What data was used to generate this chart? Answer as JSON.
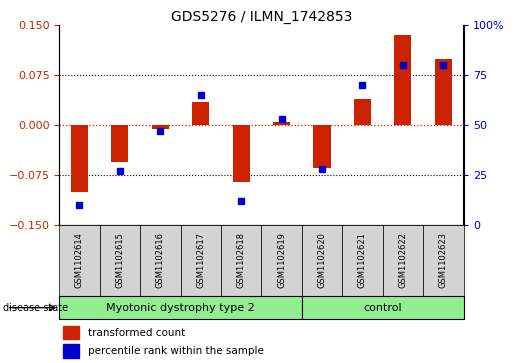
{
  "title": "GDS5276 / ILMN_1742853",
  "samples": [
    "GSM1102614",
    "GSM1102615",
    "GSM1102616",
    "GSM1102617",
    "GSM1102618",
    "GSM1102619",
    "GSM1102620",
    "GSM1102621",
    "GSM1102622",
    "GSM1102623"
  ],
  "red_values": [
    -0.1,
    -0.055,
    -0.005,
    0.035,
    -0.085,
    0.005,
    -0.065,
    0.04,
    0.135,
    0.1
  ],
  "blue_values": [
    10,
    27,
    47,
    65,
    12,
    53,
    28,
    70,
    80,
    80
  ],
  "groups": [
    {
      "label": "Myotonic dystrophy type 2",
      "start": 0,
      "end": 6
    },
    {
      "label": "control",
      "start": 6,
      "end": 10
    }
  ],
  "group_color": "#90ee90",
  "ylim_left": [
    -0.15,
    0.15
  ],
  "ylim_right": [
    0,
    100
  ],
  "yticks_left": [
    -0.15,
    -0.075,
    0,
    0.075,
    0.15
  ],
  "yticks_right": [
    0,
    25,
    50,
    75,
    100
  ],
  "red_color": "#cc2200",
  "blue_color": "#0000cc",
  "bar_width": 0.5,
  "label_red": "transformed count",
  "label_blue": "percentile rank within the sample",
  "sample_cell_color": "#d3d3d3",
  "n_samples": 10
}
